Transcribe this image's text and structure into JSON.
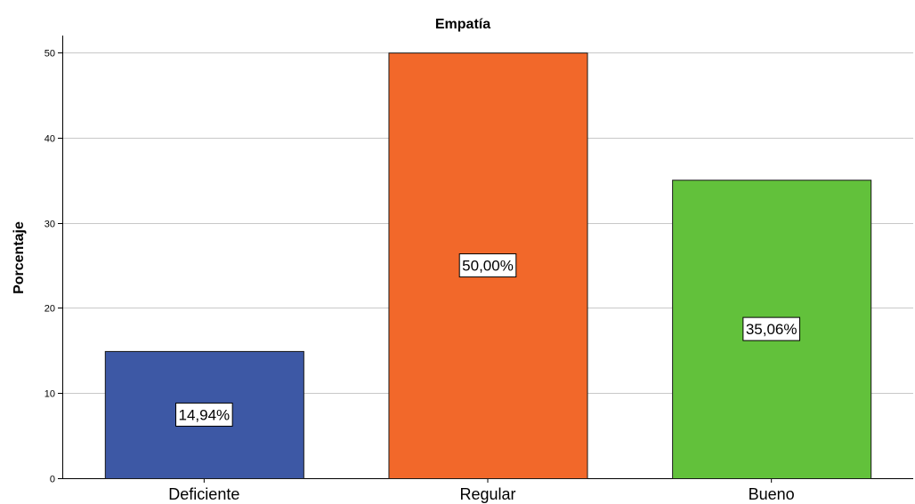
{
  "chart_data": {
    "type": "bar",
    "title": "Empatía",
    "xlabel": "",
    "ylabel": "Porcentaje",
    "categories": [
      "Deficiente",
      "Regular",
      "Bueno"
    ],
    "values": [
      14.94,
      50.0,
      35.06
    ],
    "data_labels": [
      "14,94%",
      "50,00%",
      "35,06%"
    ],
    "colors": [
      "#3d58a5",
      "#f2682a",
      "#62c13b"
    ],
    "ylim": [
      0,
      52
    ],
    "yticks": [
      0,
      10,
      20,
      30,
      40,
      50
    ],
    "grid": true,
    "legend": "none"
  }
}
